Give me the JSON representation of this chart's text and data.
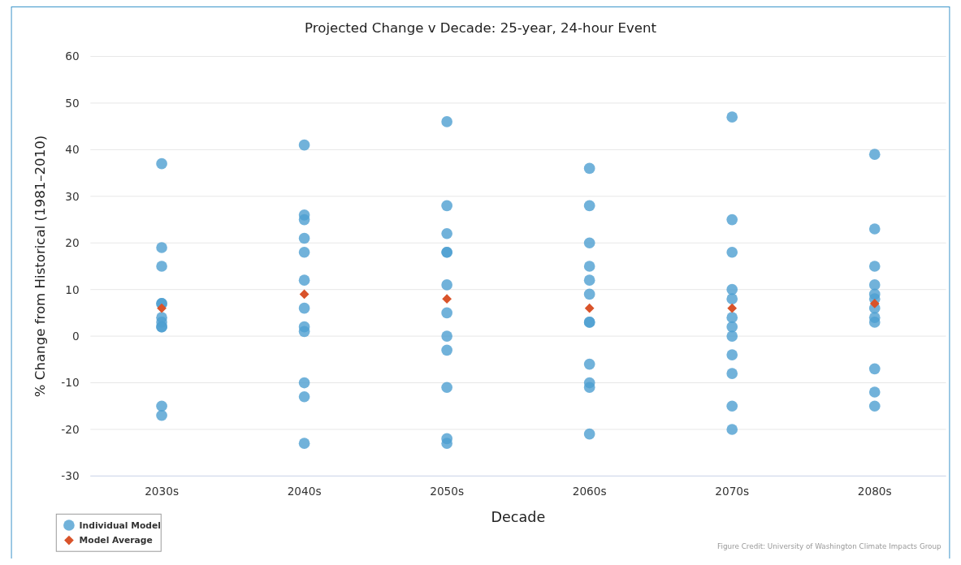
{
  "chart_data": {
    "type": "scatter",
    "title": "Projected Change v Decade: 25-year, 24-hour Event",
    "xlabel": "Decade",
    "ylabel": "% Change from Historical (1981–2010)",
    "categories": [
      "2030s",
      "2040s",
      "2050s",
      "2060s",
      "2070s",
      "2080s"
    ],
    "series": [
      {
        "name": "Individual Model",
        "color": "#4d9fd1",
        "marker": "circle",
        "x": [
          "2030s",
          "2030s",
          "2030s",
          "2030s",
          "2030s",
          "2030s",
          "2030s",
          "2030s",
          "2030s",
          "2030s",
          "2030s",
          "2040s",
          "2040s",
          "2040s",
          "2040s",
          "2040s",
          "2040s",
          "2040s",
          "2040s",
          "2040s",
          "2040s",
          "2040s",
          "2040s",
          "2050s",
          "2050s",
          "2050s",
          "2050s",
          "2050s",
          "2050s",
          "2050s",
          "2050s",
          "2050s",
          "2050s",
          "2050s",
          "2050s",
          "2060s",
          "2060s",
          "2060s",
          "2060s",
          "2060s",
          "2060s",
          "2060s",
          "2060s",
          "2060s",
          "2060s",
          "2060s",
          "2060s",
          "2070s",
          "2070s",
          "2070s",
          "2070s",
          "2070s",
          "2070s",
          "2070s",
          "2070s",
          "2070s",
          "2070s",
          "2070s",
          "2070s",
          "2080s",
          "2080s",
          "2080s",
          "2080s",
          "2080s",
          "2080s",
          "2080s",
          "2080s",
          "2080s",
          "2080s",
          "2080s",
          "2080s"
        ],
        "values": [
          37,
          19,
          15,
          7,
          7,
          4,
          3,
          2,
          2,
          -15,
          -17,
          41,
          26,
          25,
          21,
          18,
          12,
          6,
          2,
          1,
          -10,
          -13,
          -23,
          46,
          28,
          22,
          18,
          18,
          11,
          5,
          0,
          -3,
          -11,
          -22,
          -23,
          36,
          28,
          20,
          15,
          12,
          9,
          3,
          3,
          -6,
          -10,
          -11,
          -21,
          47,
          25,
          18,
          10,
          8,
          4,
          2,
          0,
          -4,
          -8,
          -15,
          -20,
          39,
          23,
          15,
          11,
          9,
          8,
          6,
          4,
          3,
          -7,
          -12,
          -15
        ]
      },
      {
        "name": "Model Average",
        "color": "#d9532a",
        "marker": "diamond",
        "x": [
          "2030s",
          "2040s",
          "2050s",
          "2060s",
          "2070s",
          "2080s"
        ],
        "values": [
          6,
          9,
          8,
          6,
          6,
          7
        ]
      }
    ],
    "ylim": [
      -30,
      60
    ],
    "yticks": [
      -30,
      -20,
      -10,
      0,
      10,
      20,
      30,
      40,
      50,
      60
    ],
    "grid": "y",
    "legend": "bottom left",
    "annotations": [
      "Figure Credit: University of Washington Climate Impacts Group"
    ]
  }
}
